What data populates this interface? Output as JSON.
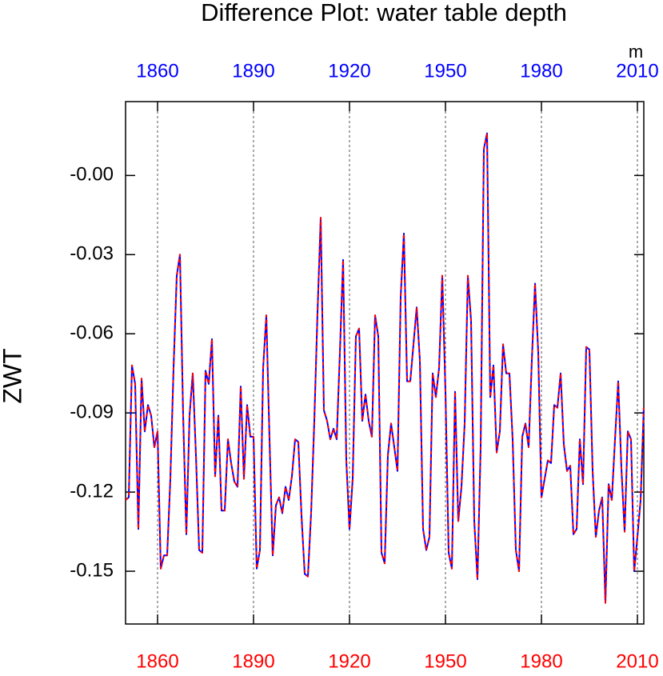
{
  "chart_data": {
    "type": "line",
    "title": "Difference Plot: water table depth",
    "ylabel": "ZWT",
    "units": "m",
    "x": [
      1850,
      1851,
      1852,
      1853,
      1854,
      1855,
      1856,
      1857,
      1858,
      1859,
      1860,
      1861,
      1862,
      1863,
      1864,
      1865,
      1866,
      1867,
      1868,
      1869,
      1870,
      1871,
      1872,
      1873,
      1874,
      1875,
      1876,
      1877,
      1878,
      1879,
      1880,
      1881,
      1882,
      1883,
      1884,
      1885,
      1886,
      1887,
      1888,
      1889,
      1890,
      1891,
      1892,
      1893,
      1894,
      1895,
      1896,
      1897,
      1898,
      1899,
      1900,
      1901,
      1902,
      1903,
      1904,
      1905,
      1906,
      1907,
      1908,
      1909,
      1910,
      1911,
      1912,
      1913,
      1914,
      1915,
      1916,
      1917,
      1918,
      1919,
      1920,
      1921,
      1922,
      1923,
      1924,
      1925,
      1926,
      1927,
      1928,
      1929,
      1930,
      1931,
      1932,
      1933,
      1934,
      1935,
      1936,
      1937,
      1938,
      1939,
      1940,
      1941,
      1942,
      1943,
      1944,
      1945,
      1946,
      1947,
      1948,
      1949,
      1950,
      1951,
      1952,
      1953,
      1954,
      1955,
      1956,
      1957,
      1958,
      1959,
      1960,
      1961,
      1962,
      1963,
      1964,
      1965,
      1966,
      1967,
      1968,
      1969,
      1970,
      1971,
      1972,
      1973,
      1974,
      1975,
      1976,
      1977,
      1978,
      1979,
      1980,
      1981,
      1982,
      1983,
      1984,
      1985,
      1986,
      1987,
      1988,
      1989,
      1990,
      1991,
      1992,
      1993,
      1994,
      1995,
      1996,
      1997,
      1998,
      1999,
      2000,
      2001,
      2002,
      2003,
      2004,
      2005,
      2006,
      2007,
      2008,
      2009,
      2010,
      2011,
      2012
    ],
    "series": [
      {
        "color": "#0000ff",
        "dash": false,
        "values": [
          -0.123,
          -0.122,
          -0.072,
          -0.079,
          -0.134,
          -0.077,
          -0.097,
          -0.087,
          -0.091,
          -0.103,
          -0.097,
          -0.149,
          -0.144,
          -0.144,
          -0.115,
          -0.073,
          -0.038,
          -0.03,
          -0.091,
          -0.136,
          -0.091,
          -0.075,
          -0.106,
          -0.142,
          -0.143,
          -0.074,
          -0.079,
          -0.062,
          -0.114,
          -0.091,
          -0.127,
          -0.127,
          -0.1,
          -0.109,
          -0.116,
          -0.118,
          -0.08,
          -0.115,
          -0.087,
          -0.099,
          -0.099,
          -0.149,
          -0.142,
          -0.073,
          -0.053,
          -0.1,
          -0.144,
          -0.125,
          -0.122,
          -0.128,
          -0.118,
          -0.123,
          -0.114,
          -0.1,
          -0.101,
          -0.129,
          -0.151,
          -0.152,
          -0.128,
          -0.093,
          -0.052,
          -0.016,
          -0.089,
          -0.093,
          -0.1,
          -0.096,
          -0.1,
          -0.067,
          -0.032,
          -0.108,
          -0.134,
          -0.115,
          -0.061,
          -0.058,
          -0.093,
          -0.083,
          -0.093,
          -0.099,
          -0.053,
          -0.061,
          -0.143,
          -0.147,
          -0.106,
          -0.094,
          -0.103,
          -0.112,
          -0.046,
          -0.022,
          -0.078,
          -0.078,
          -0.064,
          -0.05,
          -0.07,
          -0.134,
          -0.142,
          -0.137,
          -0.075,
          -0.084,
          -0.073,
          -0.038,
          -0.082,
          -0.143,
          -0.149,
          -0.082,
          -0.131,
          -0.118,
          -0.094,
          -0.038,
          -0.055,
          -0.131,
          -0.153,
          -0.103,
          0.01,
          0.016,
          -0.084,
          -0.072,
          -0.105,
          -0.097,
          -0.064,
          -0.075,
          -0.075,
          -0.1,
          -0.142,
          -0.15,
          -0.099,
          -0.094,
          -0.103,
          -0.07,
          -0.041,
          -0.067,
          -0.122,
          -0.115,
          -0.108,
          -0.109,
          -0.087,
          -0.088,
          -0.075,
          -0.102,
          -0.112,
          -0.11,
          -0.136,
          -0.134,
          -0.1,
          -0.117,
          -0.065,
          -0.066,
          -0.112,
          -0.137,
          -0.127,
          -0.122,
          -0.162,
          -0.117,
          -0.123,
          -0.1,
          -0.078,
          -0.111,
          -0.135,
          -0.097,
          -0.1,
          -0.15,
          -0.137,
          -0.123,
          -0.088
        ]
      },
      {
        "color": "#ff0000",
        "dash": true,
        "values": [
          -0.123,
          -0.122,
          -0.072,
          -0.079,
          -0.134,
          -0.077,
          -0.097,
          -0.087,
          -0.091,
          -0.103,
          -0.097,
          -0.149,
          -0.144,
          -0.144,
          -0.115,
          -0.073,
          -0.038,
          -0.03,
          -0.091,
          -0.136,
          -0.091,
          -0.075,
          -0.106,
          -0.142,
          -0.143,
          -0.074,
          -0.079,
          -0.062,
          -0.114,
          -0.091,
          -0.127,
          -0.127,
          -0.1,
          -0.109,
          -0.116,
          -0.118,
          -0.08,
          -0.115,
          -0.087,
          -0.099,
          -0.099,
          -0.149,
          -0.142,
          -0.073,
          -0.053,
          -0.1,
          -0.144,
          -0.125,
          -0.122,
          -0.128,
          -0.118,
          -0.123,
          -0.114,
          -0.1,
          -0.101,
          -0.129,
          -0.151,
          -0.152,
          -0.128,
          -0.093,
          -0.052,
          -0.016,
          -0.089,
          -0.093,
          -0.1,
          -0.096,
          -0.1,
          -0.067,
          -0.032,
          -0.108,
          -0.134,
          -0.115,
          -0.061,
          -0.058,
          -0.093,
          -0.083,
          -0.093,
          -0.099,
          -0.053,
          -0.061,
          -0.143,
          -0.147,
          -0.106,
          -0.094,
          -0.103,
          -0.112,
          -0.046,
          -0.022,
          -0.078,
          -0.078,
          -0.064,
          -0.05,
          -0.07,
          -0.134,
          -0.142,
          -0.137,
          -0.075,
          -0.084,
          -0.073,
          -0.038,
          -0.082,
          -0.143,
          -0.149,
          -0.082,
          -0.131,
          -0.118,
          -0.094,
          -0.038,
          -0.055,
          -0.131,
          -0.153,
          -0.103,
          0.01,
          0.016,
          -0.084,
          -0.072,
          -0.105,
          -0.097,
          -0.064,
          -0.075,
          -0.075,
          -0.1,
          -0.142,
          -0.15,
          -0.099,
          -0.094,
          -0.103,
          -0.07,
          -0.041,
          -0.067,
          -0.122,
          -0.115,
          -0.108,
          -0.109,
          -0.087,
          -0.088,
          -0.075,
          -0.102,
          -0.112,
          -0.11,
          -0.136,
          -0.134,
          -0.1,
          -0.117,
          -0.065,
          -0.066,
          -0.112,
          -0.137,
          -0.127,
          -0.122,
          -0.162,
          -0.117,
          -0.123,
          -0.1,
          -0.078,
          -0.111,
          -0.135,
          -0.097,
          -0.1,
          -0.15,
          -0.137,
          -0.123,
          -0.088
        ]
      }
    ],
    "xlim": [
      1850,
      2012
    ],
    "xticks": [
      1860,
      1890,
      1920,
      1950,
      1980,
      2010
    ],
    "ylim": [
      -0.17,
      0.028
    ],
    "yticks": [
      {
        "value": 0,
        "label": "-0.00"
      },
      -0.03,
      -0.06,
      -0.09,
      -0.12,
      -0.15
    ],
    "grid": true,
    "top_axis_color": "#0000ff",
    "bottom_axis_color": "#ff0000"
  }
}
